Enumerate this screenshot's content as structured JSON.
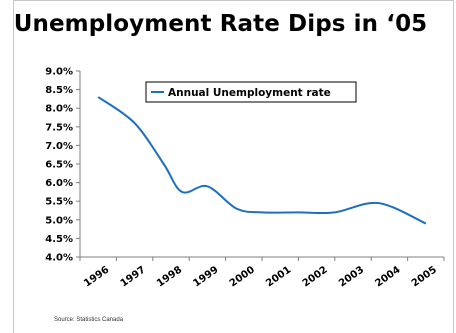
{
  "chart_data": {
    "type": "line",
    "title": "Unemployment Rate Dips in ‘05",
    "categories": [
      "1996",
      "1997",
      "1998",
      "1999",
      "2000",
      "2001",
      "2002",
      "2003",
      "2004",
      "2005"
    ],
    "y_tick_labels": [
      "9.0%",
      "8.5%",
      "8.0%",
      "7.5%",
      "7.0%",
      "6.5%",
      "6.0%",
      "5.5%",
      "5.0%",
      "4.5%",
      "4.0%"
    ],
    "ylim": [
      4.0,
      9.0
    ],
    "grid": false,
    "legend_position": "top-center",
    "series": [
      {
        "name": "Annual Unemployment rate",
        "color": "#1f6fbf",
        "values": [
          8.3,
          7.6,
          6.5,
          5.75,
          5.9,
          5.3,
          5.2,
          5.2,
          5.2,
          5.45,
          4.9
        ],
        "x": [
          0.5,
          1.5,
          2.3,
          2.8,
          3.5,
          4.3,
          5.0,
          6.0,
          7.0,
          8.2,
          9.5
        ]
      }
    ],
    "source": "Source: Statistics Canada"
  }
}
